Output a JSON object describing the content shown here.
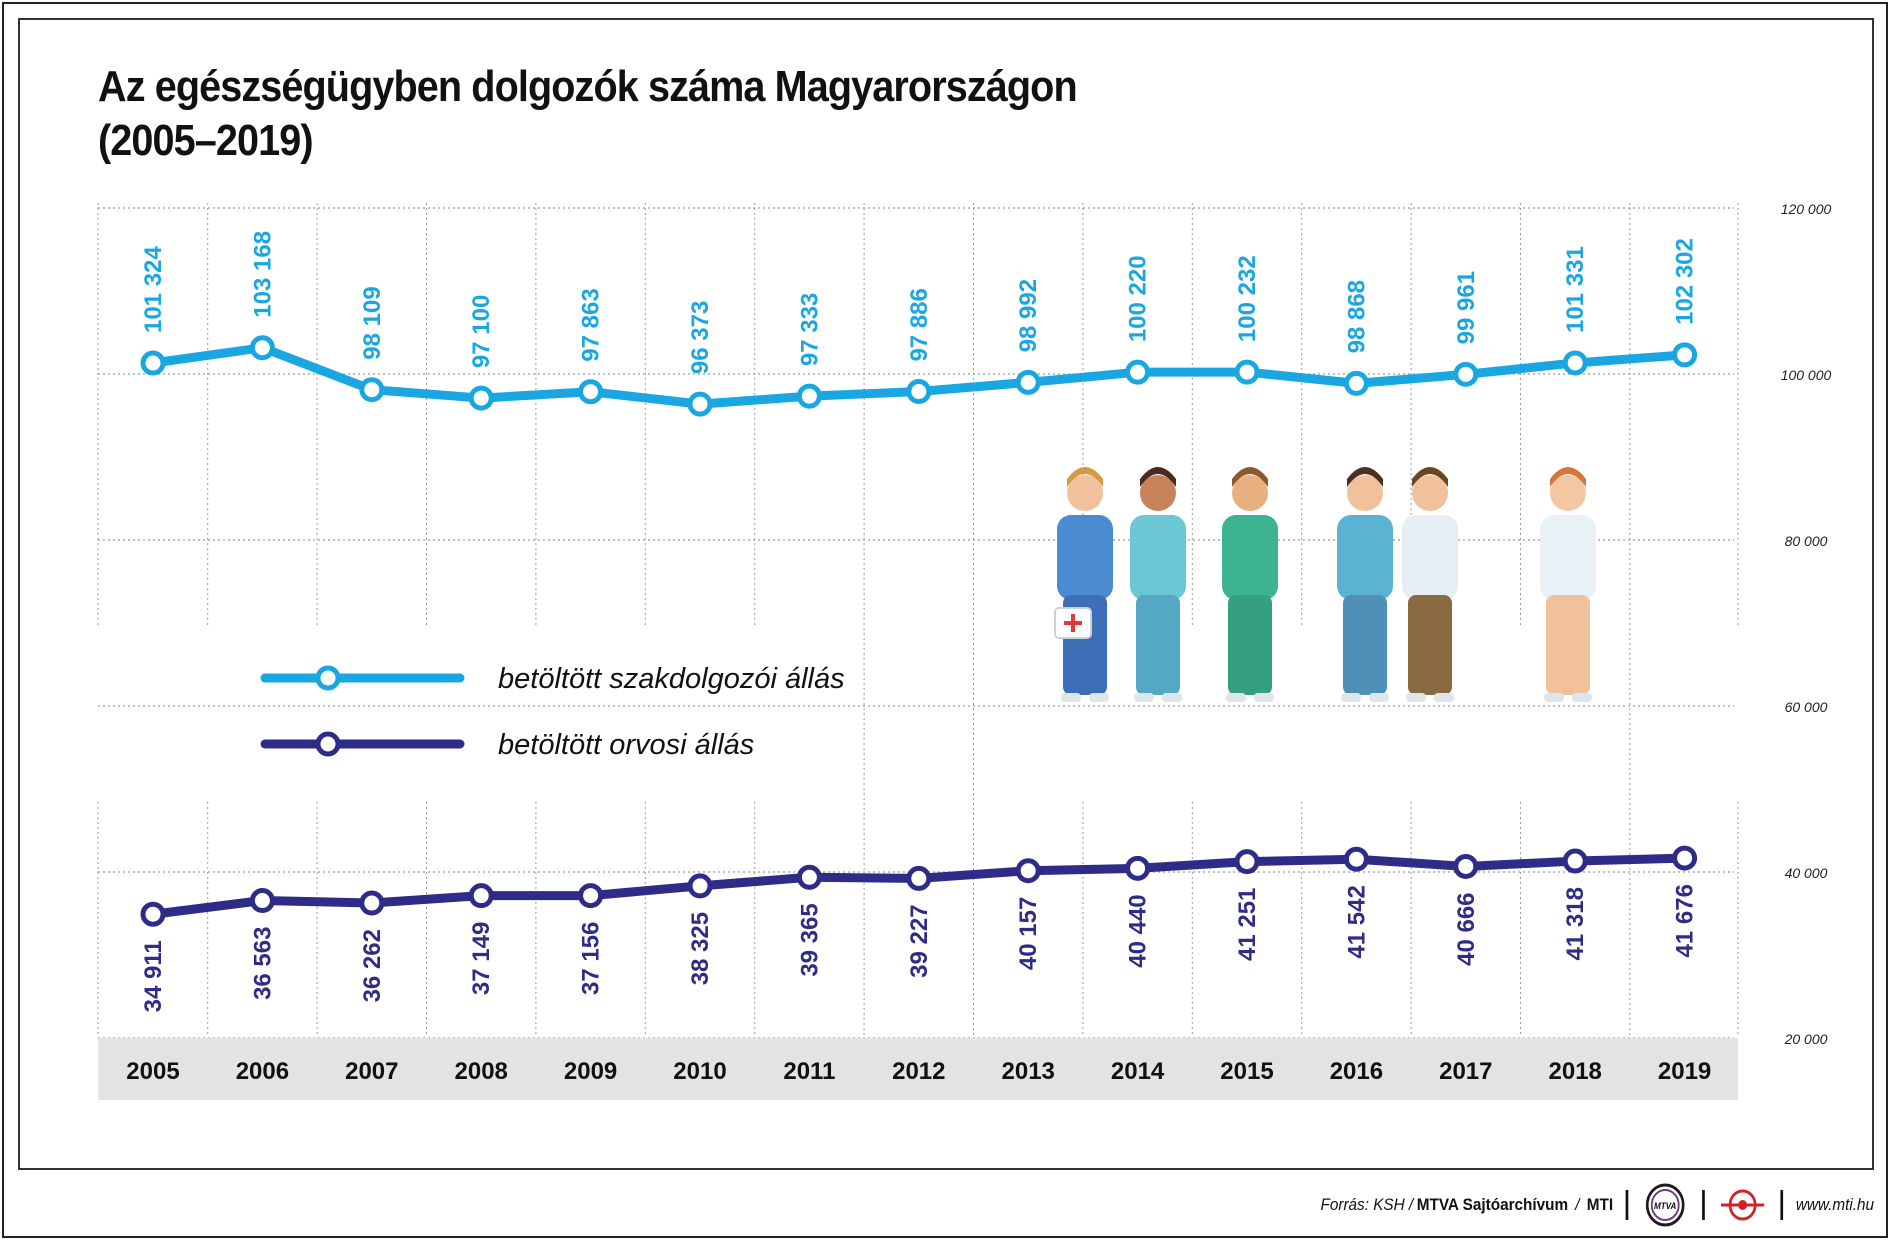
{
  "title_line1": "Az egészségügyben dolgozók száma Magyarországon",
  "title_line2": "(2005–2019)",
  "chart_data": {
    "type": "line",
    "categories": [
      "2005",
      "2006",
      "2007",
      "2008",
      "2009",
      "2010",
      "2011",
      "2012",
      "2013",
      "2014",
      "2015",
      "2016",
      "2017",
      "2018",
      "2019"
    ],
    "series": [
      {
        "name": "betöltött szakdolgozói állás",
        "color": "#1aa7e1",
        "values": [
          101324,
          103168,
          98109,
          97100,
          97863,
          96373,
          97333,
          97886,
          98992,
          100220,
          100232,
          98868,
          99961,
          101331,
          102302
        ],
        "labels": [
          "101 324",
          "103 168",
          "98 109",
          "97 100",
          "97 863",
          "96 373",
          "97 333",
          "97 886",
          "98 992",
          "100 220",
          "100 232",
          "98 868",
          "99 961",
          "101 331",
          "102 302"
        ]
      },
      {
        "name": "betöltött orvosi állás",
        "color": "#2e2c86",
        "values": [
          34911,
          36563,
          36262,
          37149,
          37156,
          38325,
          39365,
          39227,
          40157,
          40440,
          41251,
          41542,
          40666,
          41318,
          41676
        ],
        "labels": [
          "34 911",
          "36 563",
          "36 262",
          "37 149",
          "37 156",
          "38 325",
          "39 365",
          "39 227",
          "40 157",
          "40 440",
          "41 251",
          "41 542",
          "40 666",
          "41 318",
          "41 676"
        ]
      }
    ],
    "yticks": [
      120000,
      100000,
      80000,
      60000,
      40000,
      20000
    ],
    "ytick_labels": [
      "120 000",
      "100 000",
      "80 000",
      "60 000",
      "40 000",
      "20 000"
    ],
    "ylim": [
      20000,
      120000
    ],
    "grid": true,
    "legend_position": "center-left"
  },
  "footer": {
    "source_label": "Forrás: KSH /",
    "archive": "MTVA Sajtóarchívum",
    "slash": "/",
    "agency": "MTI",
    "mtva_logo_text": "MTVA",
    "url": "www.mti.hu"
  },
  "icons": {
    "illustration": "medical-staff-illustration",
    "mtva_logo": "mtva-logo-icon",
    "mti_logo": "mti-logo-icon"
  }
}
